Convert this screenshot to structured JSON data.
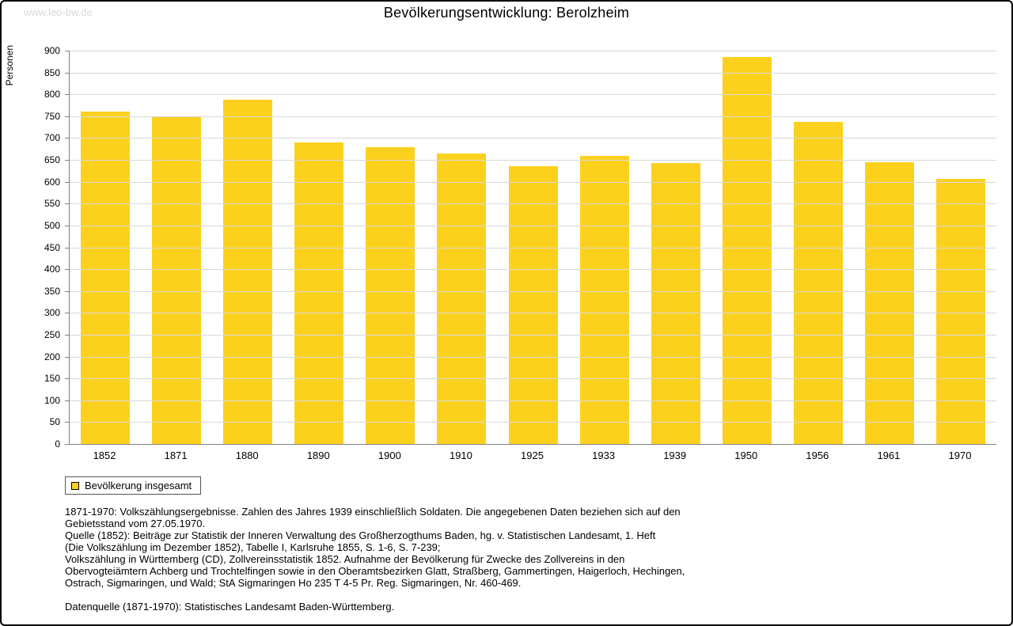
{
  "watermark": "www.leo-bw.de",
  "title": "Bevölkerungsentwicklung: Berolzheim",
  "legend": {
    "label": "Bevölkerung insgesamt"
  },
  "footnotes": [
    "1871-1970: Volkszählungsergebnisse. Zahlen des Jahres 1939 einschließlich Soldaten. Die angegebenen Daten beziehen sich auf den",
    "Gebietsstand vom 27.05.1970.",
    "Quelle (1852): Beiträge zur Statistik der Inneren Verwaltung des Großherzogthums Baden, hg. v. Statistischen Landesamt, 1. Heft",
    "(Die Volkszählung im Dezember 1852), Tabelle I, Karlsruhe 1855, S. 1-6, S. 7-239;",
    "Volkszählung in Württemberg (CD), Zollvereinsstatistik 1852. Aufnahme der Bevölkerung für Zwecke des Zollvereins in den",
    "Obervogteiämtern Achberg und Trochtelfingen sowie in den Oberamtsbezirken Glatt, Straßberg, Gammertingen, Haigerloch, Hechingen,",
    "Ostrach, Sigmaringen, und Wald; StA Sigmaringen Ho 235 T 4-5 Pr. Reg. Sigmaringen, Nr. 460-469.",
    "",
    "Datenquelle (1871-1970): Statistisches Landesamt Baden-Württemberg."
  ],
  "colors": {
    "bar": "#FCD11E",
    "gridline": "#d8d8d8",
    "axis": "#808080",
    "watermark": "#d9d9d9",
    "frame_border": "#000000"
  },
  "chart_data": {
    "type": "bar",
    "title": "Bevölkerungsentwicklung: Berolzheim",
    "categories": [
      "1852",
      "1871",
      "1880",
      "1890",
      "1900",
      "1910",
      "1925",
      "1933",
      "1939",
      "1950",
      "1956",
      "1961",
      "1970"
    ],
    "values": [
      760,
      750,
      787,
      690,
      680,
      665,
      635,
      660,
      642,
      885,
      737,
      645,
      607
    ],
    "xlabel": "",
    "ylabel": "Personen",
    "ylim": [
      0,
      900
    ],
    "ytick_step": 50,
    "grid": true,
    "legend_entries": [
      "Bevölkerung insgesamt"
    ],
    "legend_position": "bottom-left"
  }
}
